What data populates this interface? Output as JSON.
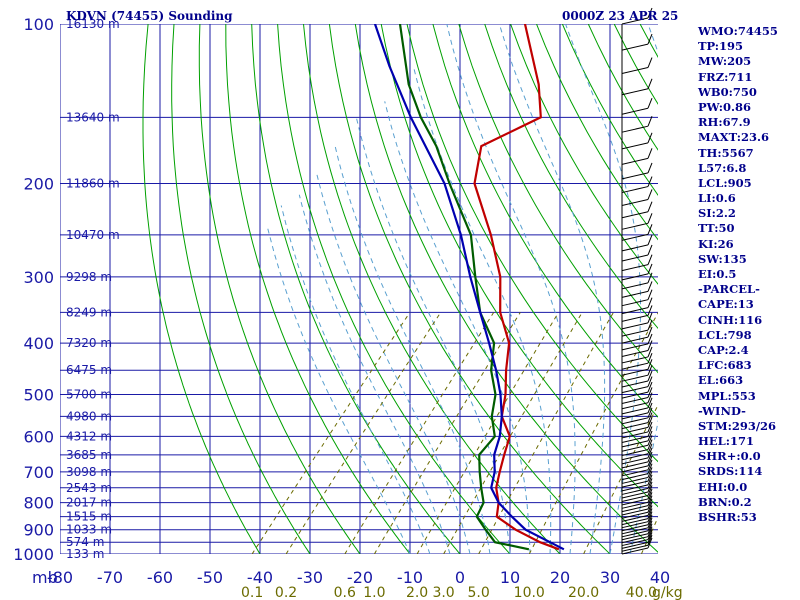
{
  "header": {
    "title": "KDVN (74455) Sounding",
    "time": "0000Z 23 APR 25"
  },
  "indices": [
    "WMO:74455",
    "TP:195",
    "MW:205",
    "FRZ:711",
    "WB0:750",
    "PW:0.86",
    "RH:67.9",
    "MAXT:23.6",
    "TH:5567",
    "L57:6.8",
    "LCL:905",
    "LI:0.6",
    "SI:2.2",
    "TT:50",
    "KI:26",
    "SW:135",
    "EI:0.5",
    "-PARCEL-",
    "CAPE:13",
    "CINH:116",
    "LCL:798",
    "CAP:2.4",
    "LFC:683",
    "EL:663",
    "MPL:553",
    "-WIND-",
    "STM:293/26",
    "HEL:171",
    "SHR+:0.0",
    "SRDS:114",
    "EHI:0.0",
    "BRN:0.2",
    "BSHR:53"
  ],
  "chart_data": {
    "type": "line",
    "diagram": "skew-t log-p",
    "x_unit_label": "mb",
    "pressure_ticks": [
      "100",
      "200",
      "300",
      "400",
      "500",
      "600",
      "700",
      "800",
      "900",
      "1000"
    ],
    "temperature_ticks": [
      "-80",
      "-70",
      "-60",
      "-50",
      "-40",
      "-30",
      "-20",
      "-10",
      "0",
      "10",
      "20",
      "30",
      "40"
    ],
    "mixing_ratio_labels": [
      "0.1",
      "0.2",
      "0.6",
      "1.0",
      "2.0",
      "3.0",
      "5.0",
      "10.0",
      "20.0",
      "40.0"
    ],
    "mixing_ratio_unit": "g/kg",
    "heights": [
      {
        "p": 100,
        "label": "16130 m"
      },
      {
        "p": 150,
        "label": "13640 m"
      },
      {
        "p": 200,
        "label": "11860 m"
      },
      {
        "p": 250,
        "label": "10470 m"
      },
      {
        "p": 300,
        "label": "9298 m"
      },
      {
        "p": 350,
        "label": "8249 m"
      },
      {
        "p": 400,
        "label": "7320 m"
      },
      {
        "p": 450,
        "label": "6475 m"
      },
      {
        "p": 500,
        "label": "5700 m"
      },
      {
        "p": 550,
        "label": "4980 m"
      },
      {
        "p": 600,
        "label": "4312 m"
      },
      {
        "p": 650,
        "label": "3685 m"
      },
      {
        "p": 700,
        "label": "3098 m"
      },
      {
        "p": 750,
        "label": "2543 m"
      },
      {
        "p": 800,
        "label": "2017 m"
      },
      {
        "p": 850,
        "label": "1515 m"
      },
      {
        "p": 900,
        "label": "1033 m"
      },
      {
        "p": 950,
        "label": "574 m"
      },
      {
        "p": 1000,
        "label": "133 m"
      }
    ],
    "series": [
      {
        "key": "temperature",
        "color": "#c00000",
        "points": [
          [
            980,
            19
          ],
          [
            950,
            14
          ],
          [
            900,
            7
          ],
          [
            850,
            1
          ],
          [
            800,
            -1
          ],
          [
            750,
            -4
          ],
          [
            700,
            -6
          ],
          [
            650,
            -8
          ],
          [
            600,
            -10
          ],
          [
            550,
            -15
          ],
          [
            500,
            -18
          ],
          [
            450,
            -22
          ],
          [
            400,
            -26
          ],
          [
            350,
            -33
          ],
          [
            300,
            -39
          ],
          [
            250,
            -48
          ],
          [
            200,
            -60
          ],
          [
            170,
            -65
          ],
          [
            150,
            -58
          ],
          [
            130,
            -64
          ],
          [
            100,
            -77
          ]
        ]
      },
      {
        "key": "dewpoint",
        "color": "#005c00",
        "points": [
          [
            980,
            13
          ],
          [
            950,
            5
          ],
          [
            900,
            1
          ],
          [
            850,
            -3
          ],
          [
            800,
            -4
          ],
          [
            750,
            -7
          ],
          [
            700,
            -10
          ],
          [
            650,
            -13
          ],
          [
            600,
            -13
          ],
          [
            550,
            -17
          ],
          [
            500,
            -20
          ],
          [
            450,
            -25
          ],
          [
            400,
            -29
          ],
          [
            350,
            -37
          ],
          [
            300,
            -44
          ],
          [
            250,
            -52
          ],
          [
            200,
            -65
          ],
          [
            170,
            -74
          ],
          [
            150,
            -82
          ],
          [
            130,
            -90
          ],
          [
            100,
            -102
          ]
        ]
      },
      {
        "key": "parcel",
        "color": "#0000b0",
        "points": [
          [
            980,
            20
          ],
          [
            950,
            16
          ],
          [
            900,
            9
          ],
          [
            850,
            4
          ],
          [
            800,
            -1
          ],
          [
            750,
            -5
          ],
          [
            700,
            -7
          ],
          [
            650,
            -10
          ],
          [
            600,
            -12
          ],
          [
            550,
            -15
          ],
          [
            500,
            -19
          ],
          [
            450,
            -24
          ],
          [
            400,
            -30
          ],
          [
            350,
            -37
          ],
          [
            300,
            -45
          ],
          [
            250,
            -54
          ],
          [
            200,
            -66
          ],
          [
            150,
            -84
          ],
          [
            120,
            -97
          ],
          [
            100,
            -107
          ]
        ]
      }
    ],
    "colors": {
      "isobar": "#1a1aa6",
      "isotherm": "#1a1aa6",
      "dry_adiabat": "#00a000",
      "moist_adiabat": "#5aa0d0",
      "mixing_ratio": "#6b6b00",
      "wind": "#000000"
    }
  }
}
